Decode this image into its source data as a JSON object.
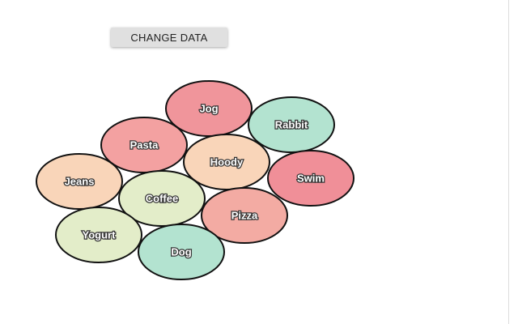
{
  "button": {
    "label": "CHANGE DATA"
  },
  "nodes": [
    {
      "label": "Jog",
      "color": "#f0959b"
    },
    {
      "label": "Rabbit",
      "color": "#b3e3d0"
    },
    {
      "label": "Pasta",
      "color": "#f3a1a1"
    },
    {
      "label": "Hoody",
      "color": "#f9d5b9"
    },
    {
      "label": "Swim",
      "color": "#f08f98"
    },
    {
      "label": "Jeans",
      "color": "#f9d5b9"
    },
    {
      "label": "Coffee",
      "color": "#e3edc9"
    },
    {
      "label": "Pizza",
      "color": "#f3aba3"
    },
    {
      "label": "Yogurt",
      "color": "#e3edc9"
    },
    {
      "label": "Dog",
      "color": "#b3e3d0"
    }
  ]
}
